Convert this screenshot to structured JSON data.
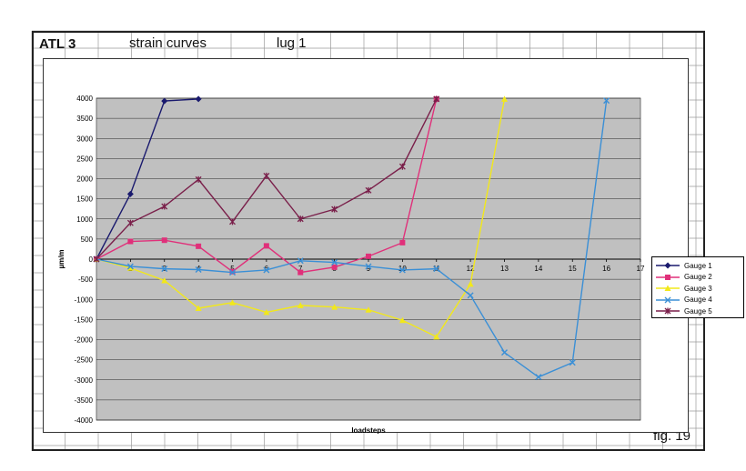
{
  "header": {
    "id": "ATL  3",
    "title": "strain  curves",
    "part": "lug  1",
    "figure": "fig.  19"
  },
  "chart_data": {
    "type": "line",
    "xlabel": "loadsteps",
    "ylabel": "µm/m",
    "xlim": [
      1,
      17
    ],
    "ylim": [
      -4000,
      4000
    ],
    "x_ticks": [
      2,
      3,
      4,
      5,
      6,
      7,
      8,
      9,
      10,
      11,
      12,
      13,
      14,
      15,
      16,
      17
    ],
    "y_ticks": [
      4000,
      3500,
      3000,
      2500,
      2000,
      1500,
      1000,
      500,
      0,
      -500,
      -1000,
      -1500,
      -2000,
      -2500,
      -3000,
      -3500,
      -4000
    ],
    "grid": true,
    "legend_position": "right",
    "plot_background": "#c0c0c0",
    "series": [
      {
        "name": "Gauge  1",
        "color": "#1a1a6e",
        "marker": "diamond",
        "x": [
          1,
          2,
          3,
          4
        ],
        "y": [
          0,
          1620,
          3930,
          3980
        ]
      },
      {
        "name": "Gauge  2",
        "color": "#e0307a",
        "marker": "square",
        "x": [
          1,
          2,
          3,
          4,
          5,
          6,
          7,
          8,
          9,
          10,
          11
        ],
        "y": [
          0,
          440,
          470,
          320,
          -310,
          330,
          -330,
          -200,
          70,
          410,
          3980
        ]
      },
      {
        "name": "Gauge  3",
        "color": "#f2e81a",
        "marker": "triangle",
        "x": [
          1,
          2,
          3,
          4,
          5,
          6,
          7,
          8,
          9,
          10,
          11,
          12,
          13
        ],
        "y": [
          0,
          -220,
          -530,
          -1220,
          -1080,
          -1320,
          -1150,
          -1190,
          -1260,
          -1520,
          -1930,
          -620,
          3980
        ]
      },
      {
        "name": "Gauge  4",
        "color": "#3a8fd6",
        "marker": "x",
        "x": [
          1,
          2,
          3,
          4,
          5,
          6,
          7,
          8,
          9,
          10,
          11,
          12,
          13,
          14,
          15,
          16
        ],
        "y": [
          0,
          -180,
          -240,
          -260,
          -330,
          -270,
          -40,
          -80,
          -180,
          -270,
          -240,
          -900,
          -2320,
          -2930,
          -2570,
          3940
        ]
      },
      {
        "name": "Gauge  5",
        "color": "#7a1f4a",
        "marker": "star",
        "x": [
          1,
          2,
          3,
          4,
          5,
          6,
          7,
          8,
          9,
          10,
          11
        ],
        "y": [
          0,
          900,
          1310,
          1980,
          930,
          2070,
          1000,
          1240,
          1710,
          2300,
          3980
        ]
      }
    ]
  }
}
